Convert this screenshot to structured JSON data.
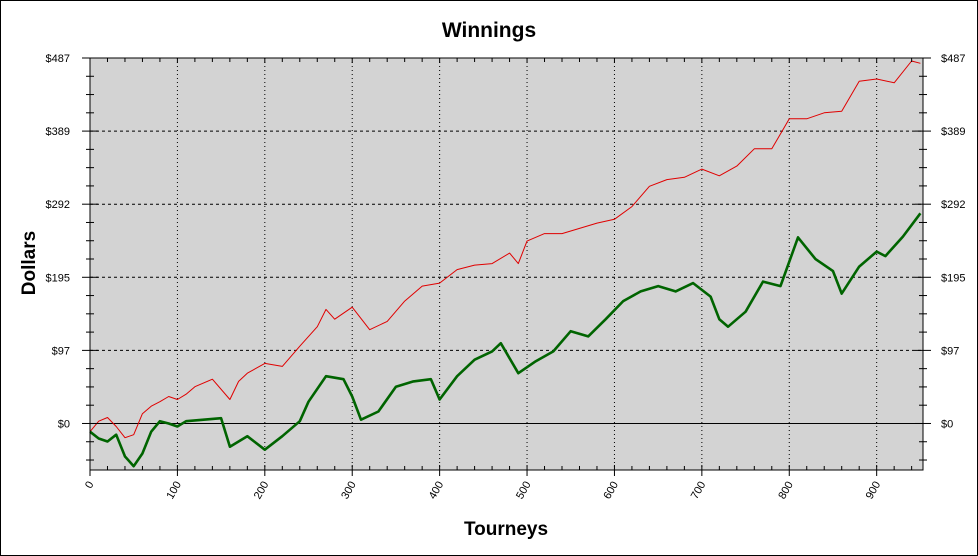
{
  "chart_data": {
    "type": "line",
    "title": "Winnings",
    "xlabel": "Tourneys",
    "ylabel": "Dollars",
    "xlim": [
      0,
      953
    ],
    "ylim": [
      -62,
      487
    ],
    "x_ticks": [
      0,
      100,
      200,
      300,
      400,
      500,
      600,
      700,
      800,
      900
    ],
    "x_tick_labels": [
      "0",
      "100",
      "200",
      "300",
      "400",
      "500",
      "600",
      "700",
      "800",
      "900"
    ],
    "y_ticks": [
      0,
      97.4,
      194.8,
      292.2,
      389.6,
      487
    ],
    "y_tick_labels": [
      "$0",
      "$97",
      "$195",
      "$292",
      "$389",
      "$487"
    ],
    "grid": true,
    "background": "#d3d3d3",
    "series": [
      {
        "color": "#e00000",
        "points": [
          [
            0,
            -11
          ],
          [
            10,
            3
          ],
          [
            20,
            8
          ],
          [
            30,
            -4
          ],
          [
            40,
            -19
          ],
          [
            50,
            -15
          ],
          [
            60,
            13
          ],
          [
            70,
            23
          ],
          [
            80,
            29
          ],
          [
            90,
            36
          ],
          [
            100,
            32
          ],
          [
            110,
            39
          ],
          [
            120,
            49
          ],
          [
            140,
            59
          ],
          [
            160,
            32
          ],
          [
            170,
            56
          ],
          [
            180,
            67
          ],
          [
            200,
            80
          ],
          [
            220,
            76
          ],
          [
            240,
            103
          ],
          [
            260,
            129
          ],
          [
            270,
            152
          ],
          [
            280,
            139
          ],
          [
            300,
            155
          ],
          [
            320,
            125
          ],
          [
            340,
            136
          ],
          [
            360,
            163
          ],
          [
            380,
            183
          ],
          [
            400,
            187
          ],
          [
            420,
            205
          ],
          [
            440,
            211
          ],
          [
            460,
            213
          ],
          [
            480,
            227
          ],
          [
            490,
            213
          ],
          [
            500,
            243
          ],
          [
            520,
            253
          ],
          [
            540,
            253
          ],
          [
            560,
            260
          ],
          [
            580,
            267
          ],
          [
            600,
            272
          ],
          [
            620,
            289
          ],
          [
            640,
            316
          ],
          [
            660,
            325
          ],
          [
            680,
            328
          ],
          [
            700,
            339
          ],
          [
            720,
            330
          ],
          [
            740,
            343
          ],
          [
            760,
            366
          ],
          [
            780,
            366
          ],
          [
            800,
            406
          ],
          [
            820,
            406
          ],
          [
            840,
            414
          ],
          [
            860,
            416
          ],
          [
            880,
            456
          ],
          [
            900,
            459
          ],
          [
            920,
            454
          ],
          [
            940,
            483
          ],
          [
            950,
            480
          ]
        ]
      },
      {
        "color": "#006400",
        "points": [
          [
            0,
            -11
          ],
          [
            10,
            -20
          ],
          [
            20,
            -24
          ],
          [
            30,
            -15
          ],
          [
            40,
            -44
          ],
          [
            50,
            -57
          ],
          [
            60,
            -40
          ],
          [
            70,
            -11
          ],
          [
            80,
            3
          ],
          [
            90,
            0
          ],
          [
            100,
            -4
          ],
          [
            110,
            3
          ],
          [
            130,
            5
          ],
          [
            150,
            7
          ],
          [
            160,
            -31
          ],
          [
            180,
            -17
          ],
          [
            200,
            -35
          ],
          [
            220,
            -17
          ],
          [
            240,
            3
          ],
          [
            250,
            29
          ],
          [
            270,
            63
          ],
          [
            290,
            59
          ],
          [
            300,
            36
          ],
          [
            310,
            5
          ],
          [
            330,
            16
          ],
          [
            350,
            49
          ],
          [
            370,
            56
          ],
          [
            390,
            59
          ],
          [
            400,
            32
          ],
          [
            420,
            63
          ],
          [
            440,
            85
          ],
          [
            460,
            96
          ],
          [
            470,
            107
          ],
          [
            490,
            67
          ],
          [
            510,
            83
          ],
          [
            530,
            96
          ],
          [
            550,
            123
          ],
          [
            570,
            116
          ],
          [
            590,
            139
          ],
          [
            610,
            163
          ],
          [
            630,
            176
          ],
          [
            650,
            183
          ],
          [
            670,
            176
          ],
          [
            690,
            187
          ],
          [
            710,
            169
          ],
          [
            720,
            139
          ],
          [
            730,
            129
          ],
          [
            750,
            149
          ],
          [
            770,
            189
          ],
          [
            790,
            183
          ],
          [
            810,
            248
          ],
          [
            830,
            219
          ],
          [
            850,
            203
          ],
          [
            860,
            173
          ],
          [
            880,
            209
          ],
          [
            900,
            229
          ],
          [
            910,
            223
          ],
          [
            930,
            249
          ],
          [
            950,
            280
          ]
        ]
      }
    ]
  }
}
